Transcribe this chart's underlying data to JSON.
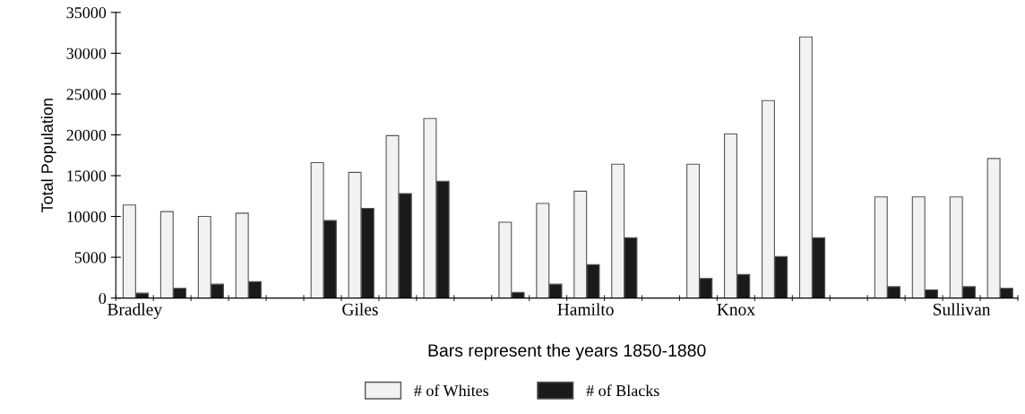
{
  "chart_data": {
    "type": "bar",
    "xlabel": "Bars represent the years 1850-1880",
    "ylabel": "Total Population",
    "categories": [
      "Bradley",
      null,
      null,
      null,
      null,
      null,
      "Giles",
      null,
      null,
      null,
      null,
      null,
      "Hamilto",
      null,
      null,
      null,
      "Knox",
      null,
      null,
      null,
      null,
      null,
      "Sullivan",
      null
    ],
    "series": [
      {
        "name": "# of Whites",
        "color": "#f2f2f2",
        "values": [
          11400,
          10600,
          10000,
          10400,
          null,
          16600,
          15400,
          19900,
          22000,
          null,
          9300,
          11600,
          13100,
          16400,
          null,
          16400,
          20100,
          24200,
          32000,
          null,
          12400,
          12400,
          12400,
          17100
        ]
      },
      {
        "name": "# of Blacks",
        "color": "#1a1a1a",
        "values": [
          600,
          1200,
          1700,
          2000,
          null,
          9500,
          11000,
          12800,
          14300,
          null,
          700,
          1700,
          4100,
          7400,
          null,
          2400,
          2900,
          5100,
          7400,
          null,
          1400,
          1000,
          1400,
          1200
        ]
      }
    ],
    "ylim": [
      0,
      35000
    ],
    "yticks": [
      0,
      5000,
      10000,
      15000,
      20000,
      25000,
      30000,
      35000
    ],
    "grid": false,
    "legend": "bottom"
  }
}
